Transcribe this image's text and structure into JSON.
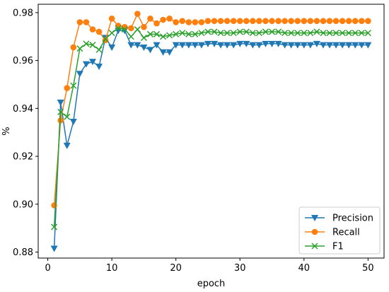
{
  "chart_data": {
    "type": "line",
    "title": "",
    "xlabel": "epoch",
    "ylabel": "%",
    "xlim": [
      -1.5,
      52.5
    ],
    "ylim": [
      0.8775,
      0.9835
    ],
    "xticks": [
      0,
      10,
      20,
      30,
      40,
      50
    ],
    "yticks": [
      0.88,
      0.9,
      0.92,
      0.94,
      0.96,
      0.98
    ],
    "xtick_labels": [
      "0",
      "10",
      "20",
      "30",
      "40",
      "50"
    ],
    "ytick_labels": [
      "0.88",
      "0.90",
      "0.92",
      "0.94",
      "0.96",
      "0.98"
    ],
    "grid": false,
    "legend_position": "bottom-right",
    "x": [
      1,
      2,
      3,
      4,
      5,
      6,
      7,
      8,
      9,
      10,
      11,
      12,
      13,
      14,
      15,
      16,
      17,
      18,
      19,
      20,
      21,
      22,
      23,
      24,
      25,
      26,
      27,
      28,
      29,
      30,
      31,
      32,
      33,
      34,
      35,
      36,
      37,
      38,
      39,
      40,
      41,
      42,
      43,
      44,
      45,
      46,
      47,
      48,
      49,
      50
    ],
    "series": [
      {
        "name": "Precision",
        "color": "#1f77b4",
        "marker": "triangle-down",
        "values": [
          0.8815,
          0.9425,
          0.9245,
          0.9345,
          0.9545,
          0.9585,
          0.9595,
          0.9575,
          0.9695,
          0.9655,
          0.9725,
          0.9725,
          0.9665,
          0.9665,
          0.9655,
          0.9645,
          0.9665,
          0.9635,
          0.9635,
          0.9665,
          0.9665,
          0.9665,
          0.9665,
          0.9665,
          0.967,
          0.967,
          0.9665,
          0.9665,
          0.9665,
          0.967,
          0.967,
          0.9665,
          0.9665,
          0.967,
          0.967,
          0.967,
          0.9665,
          0.9665,
          0.9665,
          0.9665,
          0.9665,
          0.967,
          0.9665,
          0.9665,
          0.9665,
          0.9665,
          0.9665,
          0.9665,
          0.9665,
          0.9665
        ]
      },
      {
        "name": "Recall",
        "color": "#ff7f0e",
        "marker": "circle",
        "values": [
          0.8995,
          0.935,
          0.9485,
          0.9655,
          0.976,
          0.976,
          0.973,
          0.972,
          0.9685,
          0.9775,
          0.9745,
          0.974,
          0.9735,
          0.9795,
          0.974,
          0.9775,
          0.9755,
          0.977,
          0.9775,
          0.976,
          0.9765,
          0.976,
          0.976,
          0.976,
          0.9765,
          0.9765,
          0.9765,
          0.9765,
          0.9765,
          0.9765,
          0.9765,
          0.9765,
          0.9765,
          0.9765,
          0.9765,
          0.9765,
          0.9765,
          0.9765,
          0.9765,
          0.9765,
          0.9765,
          0.9765,
          0.9765,
          0.9765,
          0.9765,
          0.9765,
          0.9765,
          0.9765,
          0.9765,
          0.9765
        ]
      },
      {
        "name": "F1",
        "color": "#2ca02c",
        "marker": "x",
        "values": [
          0.8905,
          0.9385,
          0.9365,
          0.9495,
          0.965,
          0.967,
          0.9665,
          0.9645,
          0.969,
          0.9715,
          0.9735,
          0.973,
          0.97,
          0.973,
          0.9695,
          0.971,
          0.971,
          0.97,
          0.9705,
          0.971,
          0.9715,
          0.971,
          0.971,
          0.9715,
          0.972,
          0.972,
          0.9715,
          0.9715,
          0.9715,
          0.972,
          0.972,
          0.9715,
          0.9715,
          0.972,
          0.972,
          0.972,
          0.9715,
          0.9715,
          0.9715,
          0.9715,
          0.9715,
          0.972,
          0.9715,
          0.9715,
          0.9715,
          0.9715,
          0.9715,
          0.9715,
          0.9715,
          0.9715
        ]
      }
    ]
  }
}
